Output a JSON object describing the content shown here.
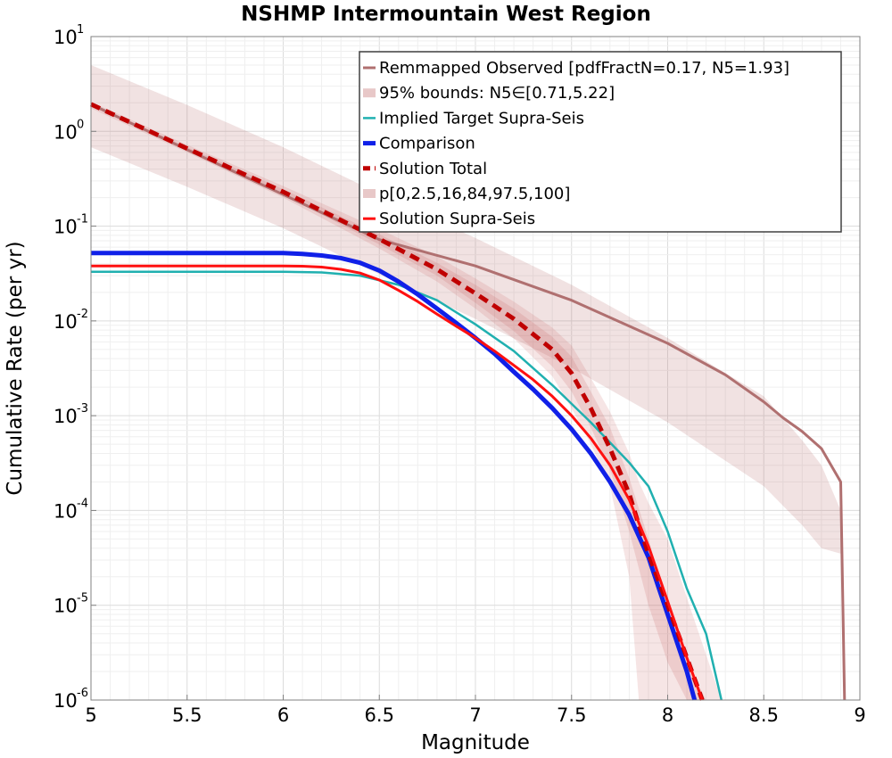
{
  "chart_data": {
    "type": "line",
    "title": "NSHMP Intermountain West Region",
    "xlabel": "Magnitude",
    "ylabel": "Cumulative Rate (per yr)",
    "xlim": [
      5,
      9
    ],
    "ylim": [
      1e-06,
      10
    ],
    "y_scale": "log",
    "grid": true,
    "legend_placement": "top-right",
    "x_ticks": [
      "5",
      "5.5",
      "6",
      "6.5",
      "7",
      "7.5",
      "8",
      "8.5",
      "9"
    ],
    "y_ticks": [
      {
        "base": "10",
        "exp": "-6"
      },
      {
        "base": "10",
        "exp": "-5"
      },
      {
        "base": "10",
        "exp": "-4"
      },
      {
        "base": "10",
        "exp": "-3"
      },
      {
        "base": "10",
        "exp": "-2"
      },
      {
        "base": "10",
        "exp": "-1"
      },
      {
        "base": "10",
        "exp": "0"
      },
      {
        "base": "10",
        "exp": "1"
      }
    ],
    "bands": [
      {
        "legend_index": 1,
        "color": "#b06060",
        "opacity": 0.18,
        "x": [
          5.0,
          5.5,
          6.0,
          6.5,
          7.0,
          7.5,
          8.0,
          8.5,
          8.7,
          8.8,
          8.9
        ],
        "lower": [
          0.68,
          0.26,
          0.095,
          0.031,
          0.0105,
          0.0032,
          0.00085,
          0.00018,
          7e-05,
          4e-05,
          3.5e-05
        ],
        "upper": [
          5.0,
          1.9,
          0.68,
          0.22,
          0.075,
          0.024,
          0.0066,
          0.0016,
          0.00055,
          0.0003,
          0.0001
        ]
      },
      {
        "legend_index": 5,
        "color": "#c86060",
        "opacity": 0.16,
        "x": [
          5.0,
          5.5,
          6.0,
          6.5,
          6.8,
          7.0,
          7.2,
          7.4,
          7.5,
          7.6,
          7.7,
          7.8,
          7.85,
          7.9,
          8.0,
          8.1,
          8.2,
          8.28
        ],
        "lower": [
          1.75,
          0.6,
          0.2,
          0.058,
          0.026,
          0.0135,
          0.0065,
          0.0026,
          0.0012,
          0.0005,
          0.00018,
          2e-05,
          1e-06,
          1e-06,
          1e-06,
          1e-06,
          1e-06,
          1e-06
        ],
        "upper": [
          2.05,
          0.72,
          0.265,
          0.093,
          0.048,
          0.028,
          0.016,
          0.0085,
          0.0055,
          0.0025,
          0.0011,
          0.0004,
          0.0002,
          0.00012,
          5e-05,
          1.2e-05,
          3e-06,
          1e-06
        ]
      },
      {
        "legend_index": 5,
        "color": "#c86060",
        "opacity": 0.18,
        "x": [
          5.0,
          5.5,
          6.0,
          6.5,
          6.8,
          7.0,
          7.2,
          7.4,
          7.5,
          7.6,
          7.7,
          7.8,
          7.9,
          8.0,
          8.1,
          8.2
        ],
        "lower": [
          1.85,
          0.64,
          0.215,
          0.064,
          0.03,
          0.0155,
          0.0078,
          0.0033,
          0.0018,
          0.00075,
          0.00027,
          6e-05,
          1e-05,
          2.5e-06,
          1e-06,
          1e-06
        ],
        "upper": [
          1.97,
          0.68,
          0.245,
          0.082,
          0.041,
          0.024,
          0.0135,
          0.0068,
          0.0042,
          0.0018,
          0.00075,
          0.00022,
          5e-05,
          1e-05,
          2.5e-06,
          1e-06
        ]
      }
    ],
    "series": [
      {
        "name": "Remmapped Observed [pdfFractN=0.17, N5=1.93]",
        "color": "#b07070",
        "width": 3,
        "dash": "",
        "x": [
          5.0,
          5.5,
          6.0,
          6.5,
          7.0,
          7.5,
          8.0,
          8.3,
          8.5,
          8.6,
          8.7,
          8.8,
          8.9,
          8.92
        ],
        "y": [
          1.93,
          0.64,
          0.215,
          0.072,
          0.038,
          0.0165,
          0.0058,
          0.0027,
          0.0014,
          0.00095,
          0.00068,
          0.00045,
          0.0002,
          1e-06
        ]
      },
      {
        "name": "95% bounds: N5∈[0.71,5.22]",
        "color": "#e8c8c8",
        "width": 10,
        "dash": "",
        "x": [],
        "y": []
      },
      {
        "name": "Implied Target Supra-Seis",
        "color": "#20b0b0",
        "width": 2.5,
        "dash": "",
        "x": [
          5.0,
          5.5,
          6.0,
          6.2,
          6.4,
          6.6,
          6.8,
          7.0,
          7.2,
          7.4,
          7.6,
          7.8,
          7.9,
          8.0,
          8.1,
          8.2,
          8.28
        ],
        "y": [
          0.033,
          0.033,
          0.033,
          0.0325,
          0.03,
          0.024,
          0.0165,
          0.0092,
          0.0048,
          0.0021,
          0.00085,
          0.00032,
          0.00018,
          6e-05,
          1.5e-05,
          5e-06,
          1e-06
        ]
      },
      {
        "name": "Comparison",
        "color": "#1020e8",
        "width": 5,
        "dash": "",
        "x": [
          5.0,
          5.5,
          6.0,
          6.1,
          6.2,
          6.3,
          6.4,
          6.5,
          6.6,
          6.7,
          6.8,
          6.9,
          7.0,
          7.1,
          7.2,
          7.3,
          7.4,
          7.5,
          7.6,
          7.7,
          7.8,
          7.9,
          8.0,
          8.1,
          8.14
        ],
        "y": [
          0.052,
          0.052,
          0.052,
          0.051,
          0.049,
          0.046,
          0.041,
          0.034,
          0.026,
          0.019,
          0.0135,
          0.0095,
          0.0066,
          0.0045,
          0.0029,
          0.0019,
          0.0012,
          0.00072,
          0.0004,
          0.0002,
          9e-05,
          3.2e-05,
          8e-06,
          2e-06,
          1e-06
        ]
      },
      {
        "name": "Solution Total",
        "color": "#c00000",
        "width": 5,
        "dash": "11,7",
        "x": [
          5.0,
          5.5,
          6.0,
          6.5,
          6.8,
          7.0,
          7.2,
          7.4,
          7.5,
          7.6,
          7.7,
          7.8,
          7.85,
          7.9,
          8.0,
          8.1,
          8.18
        ],
        "y": [
          1.93,
          0.66,
          0.23,
          0.073,
          0.035,
          0.0195,
          0.0105,
          0.005,
          0.0028,
          0.0012,
          0.00045,
          0.00015,
          7e-05,
          3.5e-05,
          1e-05,
          2.8e-06,
          1e-06
        ]
      },
      {
        "name": "p[0,2.5,16,84,97.5,100]",
        "color": "#e8c8c8",
        "width": 10,
        "dash": "",
        "x": [],
        "y": []
      },
      {
        "name": "Solution Supra-Seis",
        "color": "#ff1010",
        "width": 3,
        "dash": "",
        "x": [
          5.0,
          5.5,
          6.0,
          6.1,
          6.2,
          6.3,
          6.4,
          6.5,
          6.6,
          6.7,
          6.8,
          6.9,
          7.0,
          7.1,
          7.2,
          7.3,
          7.4,
          7.5,
          7.6,
          7.7,
          7.8,
          7.9,
          8.0,
          8.1,
          8.18
        ],
        "y": [
          0.038,
          0.038,
          0.038,
          0.0378,
          0.037,
          0.035,
          0.032,
          0.027,
          0.021,
          0.016,
          0.0118,
          0.0088,
          0.0066,
          0.0048,
          0.0034,
          0.0024,
          0.0016,
          0.001,
          0.00058,
          0.0003,
          0.00013,
          4.2e-05,
          1.1e-05,
          2.8e-06,
          1e-06
        ]
      }
    ]
  }
}
